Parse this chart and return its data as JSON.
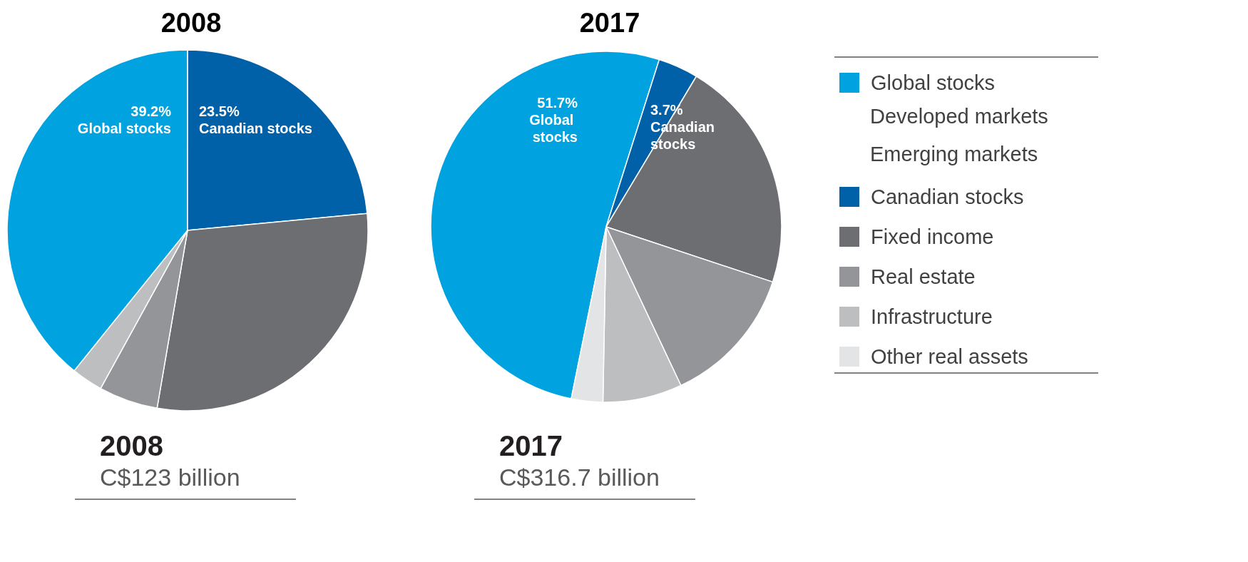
{
  "chart_data": [
    {
      "type": "pie",
      "title": "2008",
      "categories": [
        "Global stocks",
        "Canadian stocks",
        null,
        null,
        null
      ],
      "values": [
        39.2,
        23.5,
        29.2,
        5.3,
        2.8
      ],
      "colors": [
        "#00a3e0",
        "#0061a9",
        "#6d6e71",
        "#939598",
        "#bcbec0"
      ],
      "value_labels": [
        "39.2%",
        "23.5%",
        null,
        null,
        null
      ],
      "annotations": [
        "2008",
        "C$123 billion"
      ],
      "legend": false
    },
    {
      "type": "pie",
      "title": "2017",
      "categories": [
        "Global stocks",
        "Canadian stocks",
        "Fixed income",
        "Real estate",
        "Infrastructure",
        "Other real assets"
      ],
      "values": [
        51.7,
        3.7,
        21.5,
        12.9,
        7.3,
        2.9
      ],
      "colors": [
        "#00a3e0",
        "#0061a9",
        "#6d6e71",
        "#939598",
        "#bcbec0",
        "#e3e4e5"
      ],
      "value_labels": [
        "51.7%",
        "3.7%",
        null,
        null,
        null,
        null
      ],
      "annotations": [
        "2017",
        "C$316.7 billion",
        "Developed markets",
        "Emerging markets"
      ],
      "legend": "right"
    }
  ]
}
